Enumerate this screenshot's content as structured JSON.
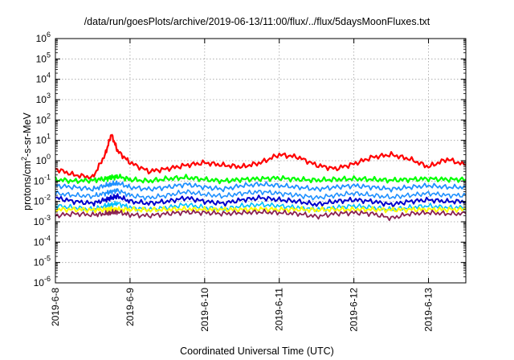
{
  "chart_data": {
    "type": "line",
    "title": "/data/run/goesPlots/archive/2019-06-13/11:00/flux/../flux/5daysMoonFluxes.txt",
    "xlabel": "Coordinated Universal Time (UTC)",
    "ylabel": {
      "prefix": "protons/cm",
      "sup": "2",
      "suffix": "-s-sr-MeV"
    },
    "yscale": "log",
    "ylim": [
      1e-06,
      1000000.0
    ],
    "xlim": [
      "2019-06-08T00:00",
      "2019-06-13T12:00"
    ],
    "grid": true,
    "legend": "none",
    "x_ticks": [
      "2019-6-8",
      "2019-6-9",
      "2019-6-10",
      "2019-6-11",
      "2019-6-12",
      "2019-6-13"
    ],
    "y_ticks": [
      {
        "base": "10",
        "exp": "6"
      },
      {
        "base": "10",
        "exp": "5"
      },
      {
        "base": "10",
        "exp": "4"
      },
      {
        "base": "10",
        "exp": "3"
      },
      {
        "base": "10",
        "exp": "2"
      },
      {
        "base": "10",
        "exp": "1"
      },
      {
        "base": "10",
        "exp": "0"
      },
      {
        "base": "10",
        "exp": "-1"
      },
      {
        "base": "10",
        "exp": "-2"
      },
      {
        "base": "10",
        "exp": "-3"
      },
      {
        "base": "10",
        "exp": "-4"
      },
      {
        "base": "10",
        "exp": "-5"
      },
      {
        "base": "10",
        "exp": "-6"
      }
    ],
    "x": [
      "2019-06-08T00:00",
      "2019-06-08T06:00",
      "2019-06-08T12:00",
      "2019-06-08T16:00",
      "2019-06-08T18:00",
      "2019-06-08T20:00",
      "2019-06-09T00:00",
      "2019-06-09T06:00",
      "2019-06-09T12:00",
      "2019-06-09T18:00",
      "2019-06-10T00:00",
      "2019-06-10T06:00",
      "2019-06-10T12:00",
      "2019-06-10T18:00",
      "2019-06-11T00:00",
      "2019-06-11T06:00",
      "2019-06-11T12:00",
      "2019-06-11T18:00",
      "2019-06-12T00:00",
      "2019-06-12T06:00",
      "2019-06-12T12:00",
      "2019-06-12T18:00",
      "2019-06-13T00:00",
      "2019-06-13T06:00",
      "2019-06-13T12:00"
    ],
    "series": [
      {
        "color": "#ff0000",
        "width": 2.2,
        "values": [
          0.4,
          0.2,
          0.15,
          2,
          20,
          3,
          0.8,
          0.3,
          0.4,
          0.6,
          0.8,
          0.6,
          0.5,
          0.8,
          2,
          1.5,
          0.6,
          0.4,
          0.7,
          1.5,
          2,
          1.2,
          0.5,
          1.2,
          0.6
        ]
      },
      {
        "color": "#00ff00",
        "width": 2.2,
        "values": [
          0.12,
          0.1,
          0.11,
          0.13,
          0.15,
          0.17,
          0.12,
          0.1,
          0.13,
          0.15,
          0.12,
          0.1,
          0.12,
          0.13,
          0.14,
          0.12,
          0.11,
          0.12,
          0.13,
          0.12,
          0.11,
          0.12,
          0.13,
          0.12,
          0.12
        ]
      },
      {
        "color": "#1e90ff",
        "width": 1.8,
        "values": [
          0.06,
          0.05,
          0.04,
          0.06,
          0.07,
          0.08,
          0.05,
          0.04,
          0.05,
          0.07,
          0.05,
          0.04,
          0.06,
          0.07,
          0.06,
          0.05,
          0.04,
          0.05,
          0.06,
          0.05,
          0.04,
          0.05,
          0.06,
          0.05,
          0.05
        ]
      },
      {
        "color": "#1e90ff",
        "width": 1.6,
        "values": [
          0.025,
          0.02,
          0.018,
          0.025,
          0.03,
          0.035,
          0.02,
          0.015,
          0.02,
          0.03,
          0.022,
          0.018,
          0.025,
          0.03,
          0.025,
          0.02,
          0.015,
          0.02,
          0.025,
          0.02,
          0.016,
          0.02,
          0.025,
          0.02,
          0.02
        ]
      },
      {
        "color": "#0000cd",
        "width": 2.0,
        "values": [
          0.015,
          0.01,
          0.008,
          0.012,
          0.015,
          0.018,
          0.01,
          0.008,
          0.01,
          0.015,
          0.01,
          0.008,
          0.012,
          0.015,
          0.012,
          0.01,
          0.007,
          0.01,
          0.012,
          0.01,
          0.007,
          0.01,
          0.012,
          0.01,
          0.01
        ]
      },
      {
        "color": "#00bfff",
        "width": 1.6,
        "values": [
          0.006,
          0.005,
          0.004,
          0.006,
          0.007,
          0.008,
          0.005,
          0.004,
          0.005,
          0.007,
          0.005,
          0.004,
          0.006,
          0.007,
          0.006,
          0.005,
          0.004,
          0.005,
          0.006,
          0.005,
          0.004,
          0.005,
          0.006,
          0.005,
          0.005
        ]
      },
      {
        "color": "#ffff00",
        "width": 2.0,
        "values": [
          0.004,
          0.004,
          0.0038,
          0.004,
          0.0042,
          0.004,
          0.004,
          0.0038,
          0.004,
          0.0042,
          0.004,
          0.004,
          0.004,
          0.0042,
          0.004,
          0.004,
          0.0038,
          0.004,
          0.004,
          0.004,
          0.0038,
          0.004,
          0.004,
          0.004,
          0.004
        ]
      },
      {
        "color": "#8b2252",
        "width": 1.8,
        "values": [
          0.002,
          0.0025,
          0.0022,
          0.0025,
          0.0028,
          0.003,
          0.0022,
          0.002,
          0.0025,
          0.003,
          0.0028,
          0.0025,
          0.0028,
          0.003,
          0.0028,
          0.0025,
          0.0018,
          0.0025,
          0.0028,
          0.0025,
          0.0015,
          0.0025,
          0.0028,
          0.0025,
          0.0025
        ]
      }
    ]
  }
}
